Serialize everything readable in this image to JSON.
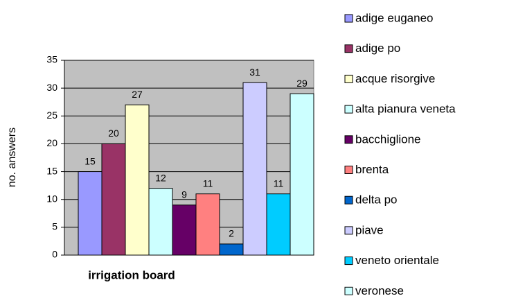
{
  "chart_data": {
    "type": "bar",
    "x_label": "irrigation board",
    "y_label": "no. answers",
    "ylim": [
      0,
      35
    ],
    "yticks": [
      0,
      5,
      10,
      15,
      20,
      25,
      30,
      35
    ],
    "grid": true,
    "plot_color": "#c0c0c0",
    "series": [
      {
        "name": "adige euganeo",
        "color": "#9999ff",
        "values": [
          15
        ]
      },
      {
        "name": "adige po",
        "color": "#993366",
        "values": [
          20
        ]
      },
      {
        "name": "acque risorgive",
        "color": "#ffffcc",
        "values": [
          27
        ]
      },
      {
        "name": "alta pianura veneta",
        "color": "#ccffff",
        "values": [
          12
        ]
      },
      {
        "name": "bacchiglione",
        "color": "#660066",
        "values": [
          9
        ]
      },
      {
        "name": "brenta",
        "color": "#ff8080",
        "values": [
          11
        ]
      },
      {
        "name": "delta po",
        "color": "#0066cc",
        "values": [
          2
        ]
      },
      {
        "name": "piave",
        "color": "#ccccff",
        "values": [
          31
        ]
      },
      {
        "name": "veneto orientale",
        "color": "#00ccff",
        "values": [
          11
        ]
      },
      {
        "name": "veronese",
        "color": "#ccffff",
        "values": [
          29
        ]
      }
    ]
  }
}
